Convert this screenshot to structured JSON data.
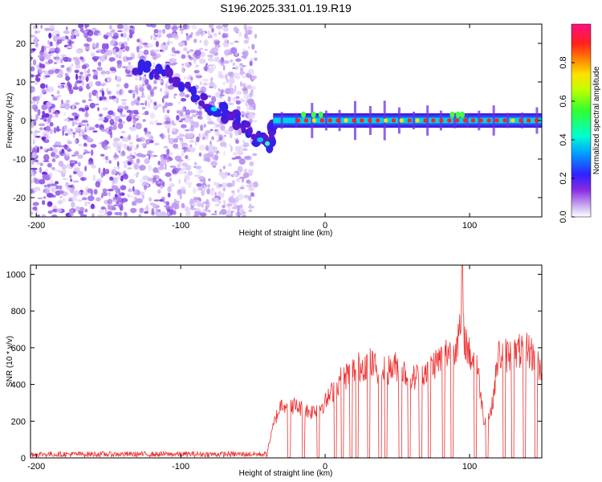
{
  "title": "S196.2025.331.01.19.R19",
  "chart_data": [
    {
      "type": "heatmap",
      "name": "spectrogram",
      "xlabel": "Height of straight line (km)",
      "ylabel": "Frequency (Hz)",
      "xlim": [
        -204,
        150
      ],
      "ylim": [
        -25,
        25
      ],
      "x_ticks": [
        -200,
        -100,
        0,
        100
      ],
      "y_ticks": [
        -20,
        -10,
        0,
        10,
        20
      ],
      "colorbar": {
        "label": "Normalized spectral amplitude",
        "range": [
          0,
          1
        ],
        "ticks": [
          0.0,
          0.2,
          0.4,
          0.6,
          0.8
        ]
      },
      "features": {
        "noise_region_x": [
          -204,
          -48
        ],
        "trace_path": [
          [
            -130,
            14
          ],
          [
            -110,
            12
          ],
          [
            -90,
            6
          ],
          [
            -75,
            3
          ],
          [
            -60,
            0
          ],
          [
            -48,
            -5
          ],
          [
            -38,
            -6
          ],
          [
            -36,
            0
          ],
          [
            150,
            0
          ]
        ],
        "steady_tone_x": [
          -36,
          150
        ],
        "steady_tone_freq_hz": 0
      }
    },
    {
      "type": "line",
      "name": "snr",
      "xlabel": "Height of straight line (km)",
      "ylabel": "SNR (10 * v/v)",
      "xlim": [
        -204,
        150
      ],
      "ylim": [
        0,
        1050
      ],
      "x_ticks": [
        -200,
        -100,
        0,
        100
      ],
      "y_ticks": [
        0,
        200,
        400,
        600,
        800,
        1000
      ],
      "color": "#ee3030",
      "envelope": [
        {
          "x": -204,
          "y": 20
        },
        {
          "x": -50,
          "y": 20
        },
        {
          "x": -40,
          "y": 40
        },
        {
          "x": -35,
          "y": 200
        },
        {
          "x": -30,
          "y": 300
        },
        {
          "x": -20,
          "y": 280
        },
        {
          "x": -10,
          "y": 250
        },
        {
          "x": 0,
          "y": 300
        },
        {
          "x": 10,
          "y": 420
        },
        {
          "x": 20,
          "y": 480
        },
        {
          "x": 30,
          "y": 520
        },
        {
          "x": 40,
          "y": 470
        },
        {
          "x": 50,
          "y": 500
        },
        {
          "x": 60,
          "y": 430
        },
        {
          "x": 70,
          "y": 480
        },
        {
          "x": 80,
          "y": 540
        },
        {
          "x": 90,
          "y": 620
        },
        {
          "x": 95,
          "y": 700
        },
        {
          "x": 100,
          "y": 560
        },
        {
          "x": 105,
          "y": 520
        },
        {
          "x": 110,
          "y": 200
        },
        {
          "x": 115,
          "y": 250
        },
        {
          "x": 120,
          "y": 560
        },
        {
          "x": 130,
          "y": 560
        },
        {
          "x": 140,
          "y": 600
        },
        {
          "x": 150,
          "y": 480
        }
      ],
      "peak": {
        "x": 95,
        "y": 1050
      },
      "dropouts_x": [
        -25,
        -15,
        -5,
        7,
        12,
        18,
        22,
        30,
        38,
        42,
        52,
        58,
        66,
        72,
        82,
        88,
        104,
        112,
        124,
        130,
        138,
        146
      ]
    }
  ]
}
